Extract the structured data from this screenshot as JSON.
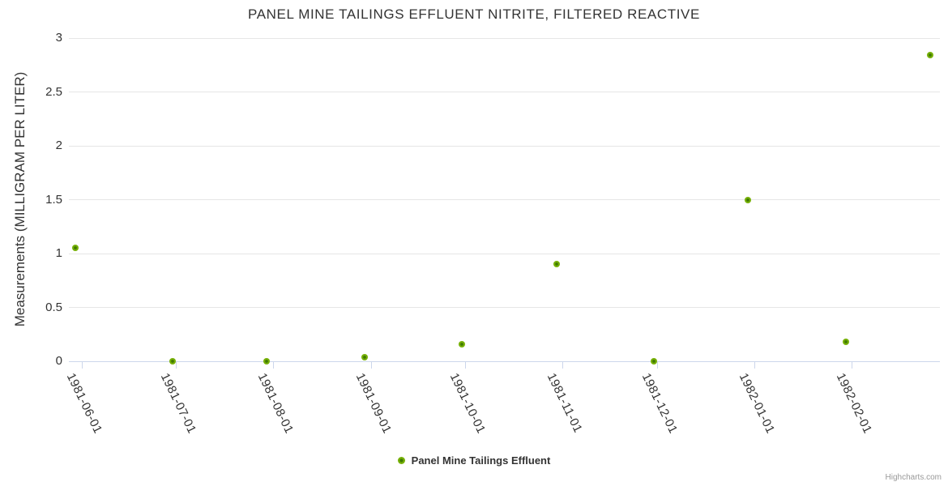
{
  "page": {
    "credits": "Highcharts.com"
  },
  "chart_data": {
    "type": "scatter",
    "title": "PANEL MINE TAILINGS EFFLUENT NITRITE, FILTERED REACTIVE",
    "xlabel": "",
    "ylabel": "Measurements (MILLIGRAM PER LITER)",
    "ylim": [
      0,
      3
    ],
    "y_ticks": [
      {
        "value": 0,
        "label": "0"
      },
      {
        "value": 0.5,
        "label": "0.5"
      },
      {
        "value": 1,
        "label": "1"
      },
      {
        "value": 1.5,
        "label": "1.5"
      },
      {
        "value": 2,
        "label": "2"
      },
      {
        "value": 2.5,
        "label": "2.5"
      },
      {
        "value": 3,
        "label": "3"
      }
    ],
    "x_ticks": [
      "1981-06-01",
      "1981-07-01",
      "1981-08-01",
      "1981-09-01",
      "1981-10-01",
      "1981-11-01",
      "1981-12-01",
      "1982-01-01",
      "1982-02-01"
    ],
    "x_range": [
      "1981-05-28",
      "1982-03-01"
    ],
    "grid": true,
    "legend_position": "bottom",
    "colors": {
      "marker": "#76b007",
      "marker_center": "#3f7a02",
      "gridline": "#e6e6e6",
      "axis_line": "#ccd6eb",
      "text": "#333333"
    },
    "series": [
      {
        "name": "Panel Mine Tailings Effluent",
        "color": "#76b007",
        "points": [
          {
            "date": "1981-05-30",
            "value": 1.05
          },
          {
            "date": "1981-06-30",
            "value": 0
          },
          {
            "date": "1981-07-30",
            "value": 0
          },
          {
            "date": "1981-08-30",
            "value": 0.04
          },
          {
            "date": "1981-09-30",
            "value": 0.16
          },
          {
            "date": "1981-10-30",
            "value": 0.9
          },
          {
            "date": "1981-11-30",
            "value": 0
          },
          {
            "date": "1981-12-30",
            "value": 1.5
          },
          {
            "date": "1982-01-30",
            "value": 0.18
          },
          {
            "date": "1982-02-26",
            "value": 2.84
          }
        ]
      }
    ]
  }
}
